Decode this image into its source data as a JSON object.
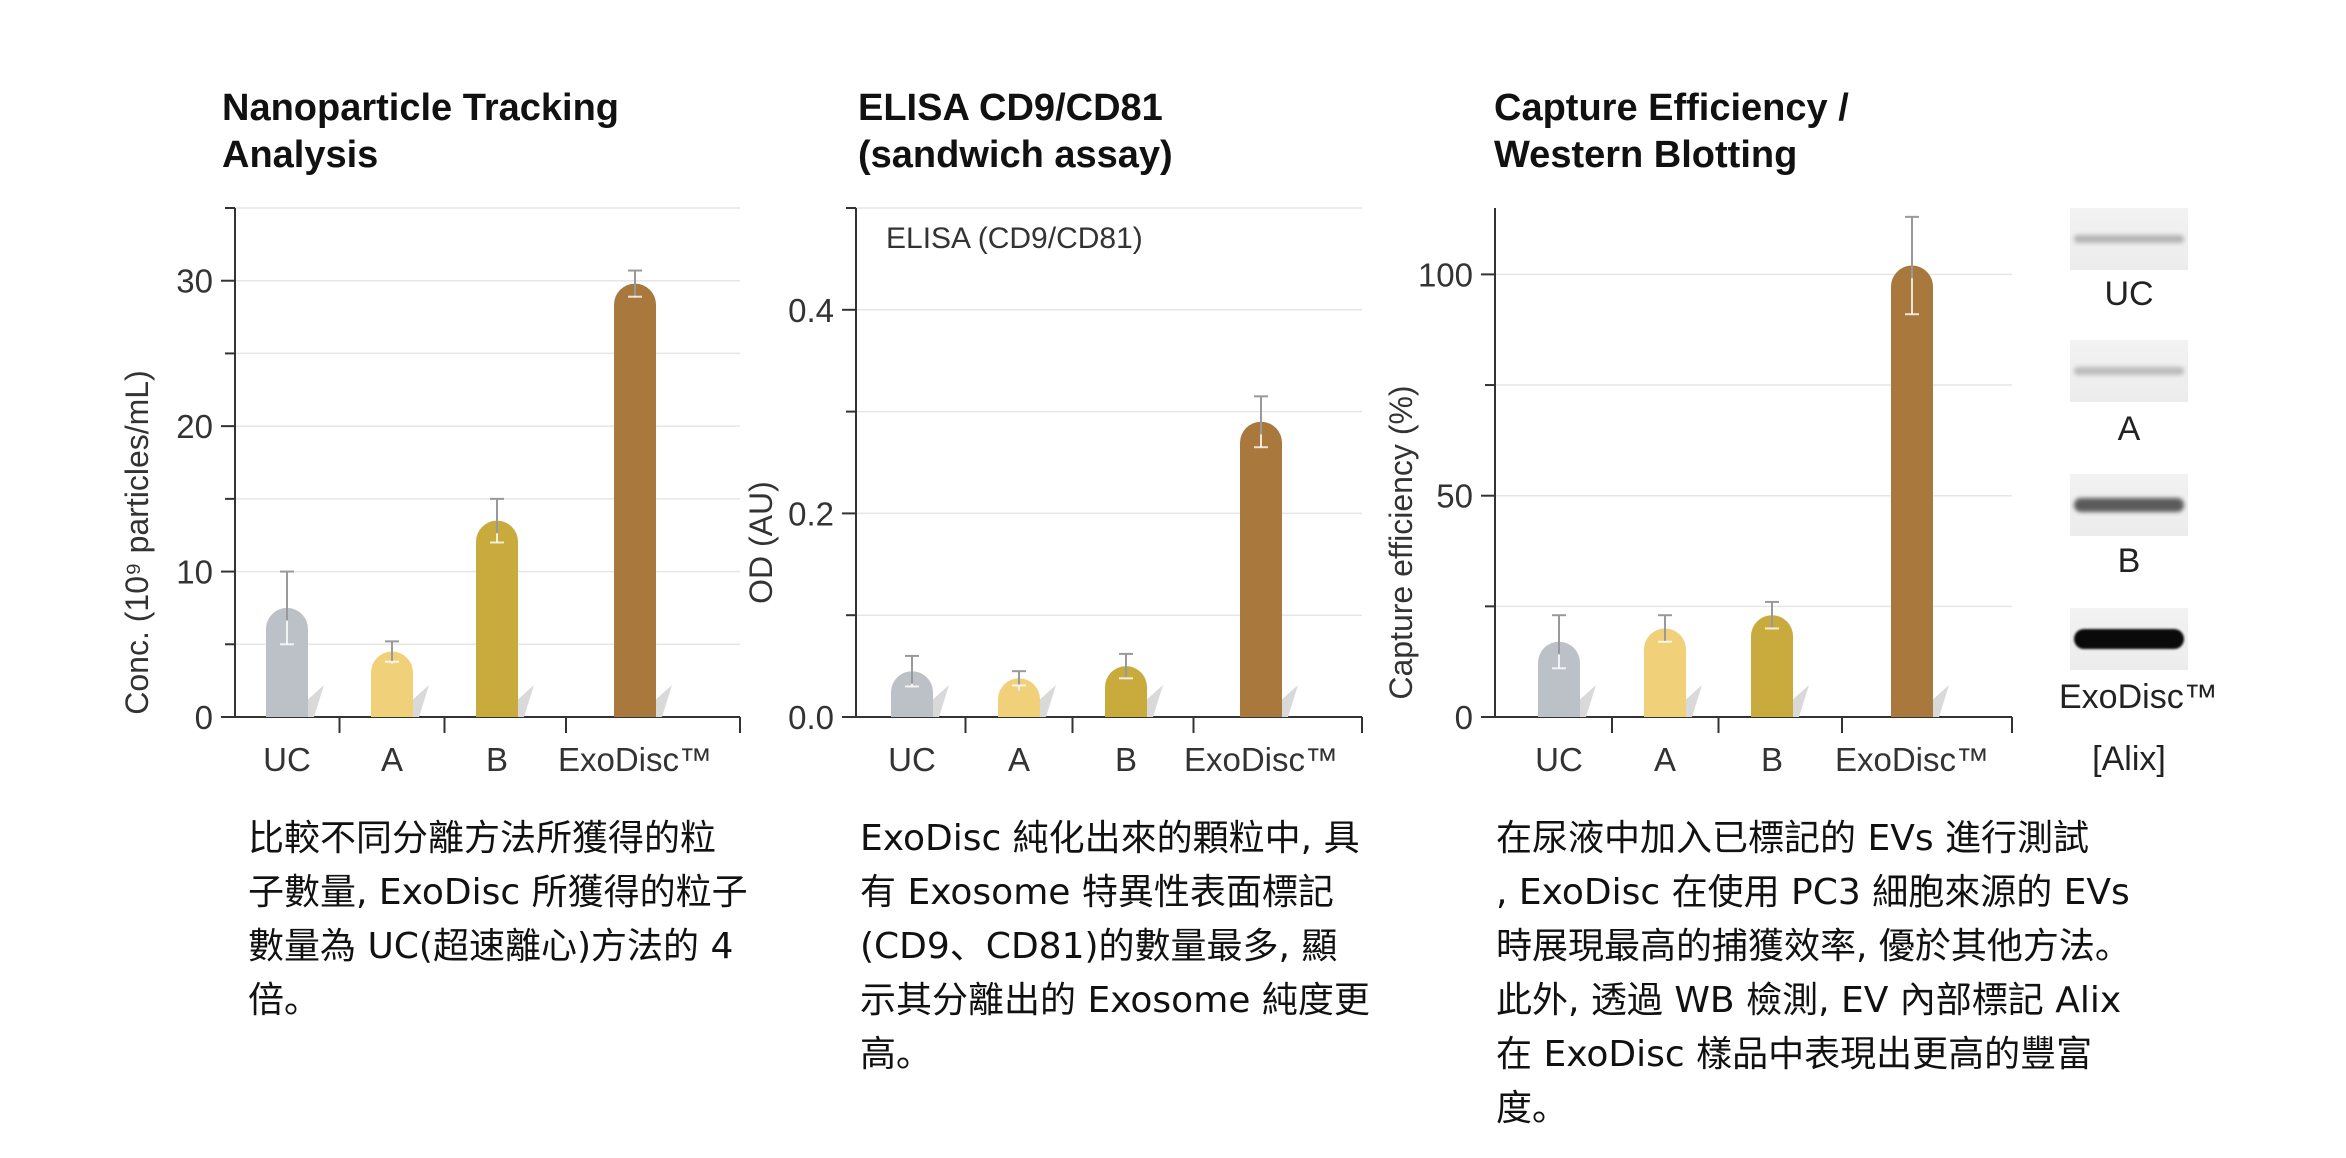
{
  "panels": [
    {
      "title": [
        "Nanoparticle Tracking",
        "Analysis"
      ],
      "description": [
        "比較不同分離方法所獲得的粒",
        "子數量, ExoDisc 所獲得的粒子",
        "數量為 UC(超速離心)方法的 4",
        "倍。"
      ]
    },
    {
      "title": [
        "ELISA CD9/CD81",
        "(sandwich assay)"
      ],
      "description": [
        "ExoDisc 純化出來的顆粒中, 具",
        "有 Exosome 特異性表面標記",
        "(CD9、CD81)的數量最多, 顯",
        "示其分離出的 Exosome 純度更",
        "高。"
      ]
    },
    {
      "title": [
        "Capture Efficiency /",
        "Western Blotting"
      ],
      "description": [
        "在尿液中加入已標記的 EVs 進行測試",
        ", ExoDisc 在使用 PC3 細胞來源的 EVs",
        "時展現最高的捕獲效率, 優於其他方法。",
        "此外, 透過 WB 檢測, EV 內部標記 Alix",
        "在 ExoDisc 樣品中表現出更高的豐富",
        "度。"
      ]
    }
  ],
  "chart_data": [
    {
      "type": "bar",
      "categories": [
        "UC",
        "A",
        "B",
        "ExoDisc™"
      ],
      "values": [
        7.5,
        4.5,
        13.5,
        29.8
      ],
      "errors": [
        2.5,
        0.7,
        1.5,
        0.9
      ],
      "ylabel": "Conc. (10⁹ particles/mL)",
      "ylim": [
        0,
        35
      ],
      "yticks": [
        0,
        10,
        20,
        30
      ],
      "minor_ticks": [
        5,
        15,
        25,
        35
      ],
      "grid": true,
      "colors": [
        "#bcc0c7",
        "#f0d078",
        "#c9aa3c",
        "#a8783c"
      ]
    },
    {
      "type": "bar",
      "categories": [
        "UC",
        "A",
        "B",
        "ExoDisc™"
      ],
      "values": [
        0.045,
        0.038,
        0.05,
        0.29
      ],
      "errors": [
        0.015,
        0.007,
        0.012,
        0.025
      ],
      "ylabel": "OD (AU)",
      "annotation": "ELISA (CD9/CD81)",
      "ylim": [
        0,
        0.5
      ],
      "yticks": [
        0.0,
        0.2,
        0.4
      ],
      "ytick_labels": [
        "0.0",
        "0.2",
        "0.4"
      ],
      "minor_ticks": [
        0.1,
        0.3,
        0.5
      ],
      "grid": true,
      "colors": [
        "#bcc0c7",
        "#f0d078",
        "#c9aa3c",
        "#a8783c"
      ]
    },
    {
      "type": "bar",
      "categories": [
        "UC",
        "A",
        "B",
        "ExoDisc™"
      ],
      "values": [
        17,
        20,
        23,
        102
      ],
      "errors": [
        6,
        3,
        3,
        11
      ],
      "ylabel": "Capture efficiency (%)",
      "ylim": [
        0,
        115
      ],
      "yticks": [
        0,
        50,
        100
      ],
      "minor_ticks": [
        25,
        75
      ],
      "grid": true,
      "colors": [
        "#bcc0c7",
        "#f0d078",
        "#c9aa3c",
        "#a8783c"
      ]
    }
  ],
  "western_blot": {
    "lanes": [
      {
        "label": "UC",
        "intensity": 0.12
      },
      {
        "label": "A",
        "intensity": 0.08
      },
      {
        "label": "B",
        "intensity": 0.55
      },
      {
        "label": "ExoDisc™",
        "intensity": 1.0
      }
    ],
    "marker": "[Alix]"
  }
}
